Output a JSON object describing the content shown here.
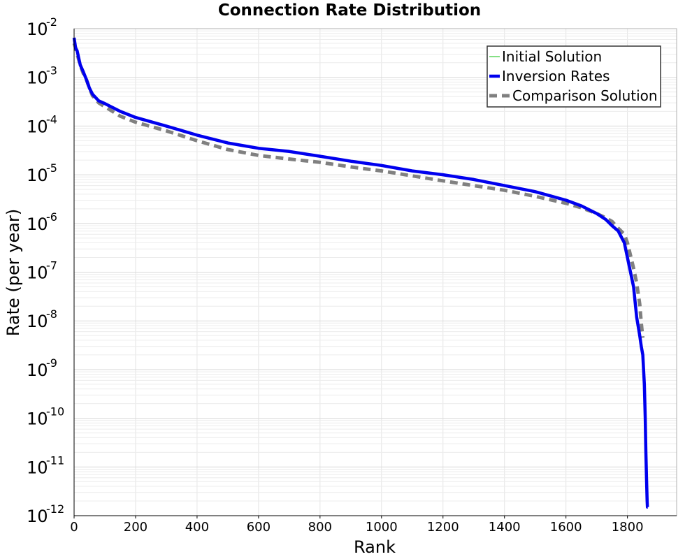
{
  "chart_data": {
    "type": "line",
    "title": "Connection Rate Distribution",
    "xlabel": "Rank",
    "ylabel": "Rate (per year)",
    "xlim": [
      0,
      1960
    ],
    "ylim": [
      1e-12,
      0.01
    ],
    "yscale": "log",
    "grid": true,
    "legend_position": "top-right",
    "x_ticks": [
      0,
      200,
      400,
      600,
      800,
      1000,
      1200,
      1400,
      1600,
      1800
    ],
    "x_tick_labels": [
      "0",
      "200",
      "400",
      "600",
      "800",
      "1000",
      "1200",
      "1400",
      "1600",
      "1800"
    ],
    "y_ticks": [
      {
        "value": 0.01,
        "base": "10",
        "exp": "-2"
      },
      {
        "value": 0.001,
        "base": "10",
        "exp": "-3"
      },
      {
        "value": 0.0001,
        "base": "10",
        "exp": "-4"
      },
      {
        "value": 1e-05,
        "base": "10",
        "exp": "-5"
      },
      {
        "value": 1e-06,
        "base": "10",
        "exp": "-6"
      },
      {
        "value": 1e-07,
        "base": "10",
        "exp": "-7"
      },
      {
        "value": 1e-08,
        "base": "10",
        "exp": "-8"
      },
      {
        "value": 1e-09,
        "base": "10",
        "exp": "-9"
      },
      {
        "value": 1e-10,
        "base": "10",
        "exp": "-10"
      },
      {
        "value": 1e-11,
        "base": "10",
        "exp": "-11"
      },
      {
        "value": 1e-12,
        "base": "10",
        "exp": "-12"
      }
    ],
    "series": [
      {
        "name": "Initial Solution",
        "color": "#33cc33",
        "style": "thin",
        "x": [],
        "y": []
      },
      {
        "name": "Inversion Rates",
        "color": "#0000ee",
        "style": "solid",
        "x": [
          0,
          5,
          10,
          15,
          20,
          30,
          40,
          50,
          60,
          80,
          100,
          150,
          200,
          300,
          400,
          500,
          600,
          700,
          800,
          900,
          1000,
          1100,
          1200,
          1300,
          1400,
          1500,
          1600,
          1650,
          1700,
          1730,
          1750,
          1770,
          1790,
          1800,
          1810,
          1820,
          1830,
          1840,
          1845,
          1850,
          1855,
          1858,
          1860,
          1862,
          1864,
          1865,
          1866
        ],
        "y": [
          0.0065,
          0.004,
          0.0035,
          0.0025,
          0.0018,
          0.0013,
          0.0009,
          0.0006,
          0.00045,
          0.00033,
          0.00029,
          0.0002,
          0.00015,
          0.0001,
          6.5e-05,
          4.5e-05,
          3.5e-05,
          3e-05,
          2.4e-05,
          1.9e-05,
          1.55e-05,
          1.2e-05,
          1e-05,
          8e-06,
          6e-06,
          4.5e-06,
          3e-06,
          2.3e-06,
          1.6e-06,
          1.2e-06,
          9e-07,
          7e-07,
          4e-07,
          2e-07,
          1e-07,
          5e-08,
          1.2e-08,
          5e-09,
          3e-09,
          2e-09,
          5e-10,
          1e-10,
          2e-11,
          6e-12,
          2e-12,
          1.5e-12,
          1.5e-12
        ]
      },
      {
        "name": "Comparison Solution",
        "color": "#808080",
        "style": "dashed",
        "x": [
          0,
          5,
          10,
          20,
          30,
          40,
          50,
          60,
          80,
          100,
          150,
          200,
          300,
          400,
          500,
          600,
          700,
          800,
          900,
          1000,
          1100,
          1200,
          1300,
          1400,
          1500,
          1600,
          1650,
          1700,
          1730,
          1750,
          1770,
          1790,
          1800,
          1810,
          1820,
          1830,
          1840,
          1845,
          1850
        ],
        "y": [
          0.005,
          0.004,
          0.003,
          0.0018,
          0.0012,
          0.0009,
          0.0006,
          0.00042,
          0.0003,
          0.00025,
          0.00016,
          0.00012,
          8e-05,
          5e-05,
          3.3e-05,
          2.5e-05,
          2.1e-05,
          1.8e-05,
          1.45e-05,
          1.2e-05,
          9.5e-06,
          7.5e-06,
          6e-06,
          4.8e-06,
          3.6e-06,
          2.6e-06,
          2.1e-06,
          1.6e-06,
          1.3e-06,
          1.1e-06,
          8e-07,
          6e-07,
          4e-07,
          2.2e-07,
          1.2e-07,
          6e-08,
          2.2e-08,
          9e-09,
          4.5e-09
        ]
      }
    ]
  }
}
